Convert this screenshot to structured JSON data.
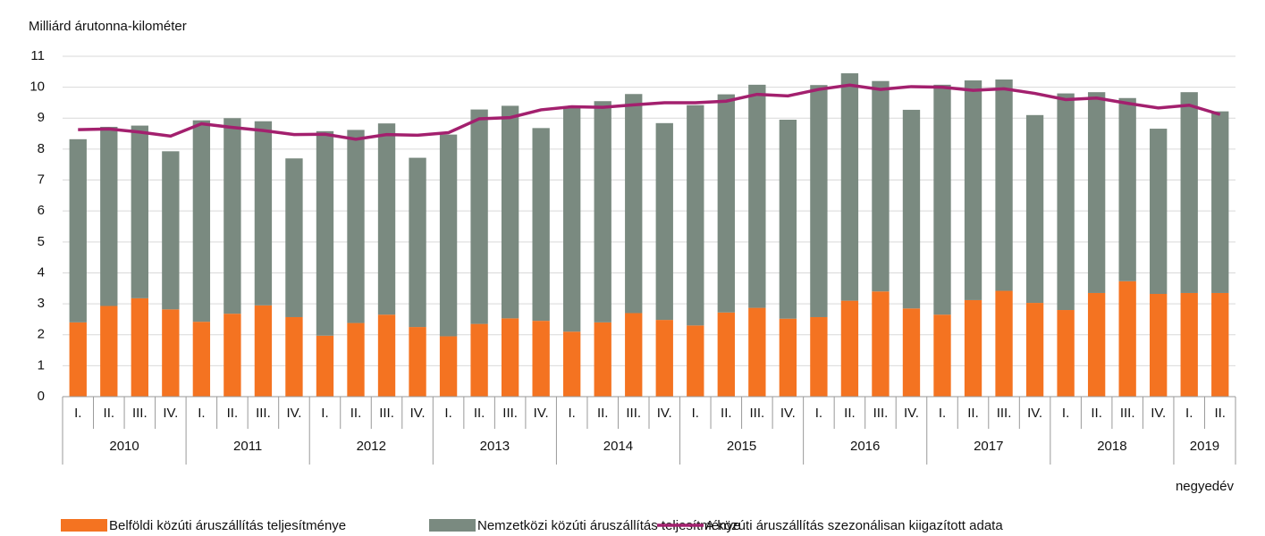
{
  "chart_data": {
    "type": "stacked_bar_line",
    "y_label": "Milliárd árutonna-kilométer",
    "x_label": "negyedév",
    "categories": [
      "I.",
      "II.",
      "III.",
      "IV.",
      "I.",
      "II.",
      "III.",
      "IV.",
      "I.",
      "II.",
      "III.",
      "IV.",
      "I.",
      "II.",
      "III.",
      "IV.",
      "I.",
      "II.",
      "III.",
      "IV.",
      "I.",
      "II.",
      "III.",
      "IV.",
      "I.",
      "II.",
      "III.",
      "IV.",
      "I.",
      "II.",
      "III.",
      "IV.",
      "I.",
      "II.",
      "III.",
      "IV.",
      "I.",
      "II."
    ],
    "x_groups": [
      "2010",
      "2011",
      "2012",
      "2013",
      "2014",
      "2015",
      "2016",
      "2017",
      "2018",
      "2019"
    ],
    "ylim": [
      0,
      11
    ],
    "yticks": [
      0,
      1,
      2,
      3,
      4,
      5,
      6,
      7,
      8,
      9,
      10,
      11
    ],
    "grid": true,
    "series": [
      {
        "name": "Belföldi közúti áruszállítás teljesítménye",
        "color": "#f47321",
        "kind": "bar",
        "values": [
          2.4,
          2.93,
          3.18,
          2.82,
          2.42,
          2.68,
          2.95,
          2.57,
          1.97,
          2.38,
          2.65,
          2.25,
          1.95,
          2.35,
          2.53,
          2.45,
          2.1,
          2.4,
          2.7,
          2.48,
          2.3,
          2.72,
          2.87,
          2.52,
          2.57,
          3.1,
          3.4,
          2.85,
          2.65,
          3.12,
          3.42,
          3.03,
          2.8,
          3.35,
          3.73,
          3.32,
          3.35,
          3.35
        ]
      },
      {
        "name": "Nemzetközi  közúti áruszállítás teljesítménye",
        "color": "#7a8a80",
        "kind": "bar",
        "values": [
          5.92,
          5.79,
          5.58,
          5.11,
          6.51,
          6.32,
          5.95,
          5.13,
          6.61,
          6.24,
          6.18,
          5.47,
          6.52,
          6.93,
          6.87,
          6.23,
          7.25,
          7.15,
          7.08,
          6.36,
          7.12,
          7.05,
          7.21,
          6.43,
          7.5,
          7.35,
          6.8,
          6.42,
          7.43,
          7.1,
          6.83,
          6.07,
          7.0,
          6.49,
          5.92,
          5.34,
          6.49,
          5.87
        ]
      },
      {
        "name": "A közúti áruszállítás szezonálisan kiigazított adata",
        "color": "#a3206e",
        "kind": "line",
        "values": [
          8.63,
          8.65,
          8.55,
          8.42,
          8.82,
          8.7,
          8.6,
          8.47,
          8.48,
          8.32,
          8.47,
          8.45,
          8.53,
          8.98,
          9.02,
          9.27,
          9.37,
          9.35,
          9.43,
          9.5,
          9.5,
          9.55,
          9.77,
          9.72,
          9.93,
          10.07,
          9.93,
          10.02,
          10.0,
          9.9,
          9.95,
          9.8,
          9.6,
          9.65,
          9.48,
          9.33,
          9.42,
          9.12
        ]
      }
    ]
  }
}
